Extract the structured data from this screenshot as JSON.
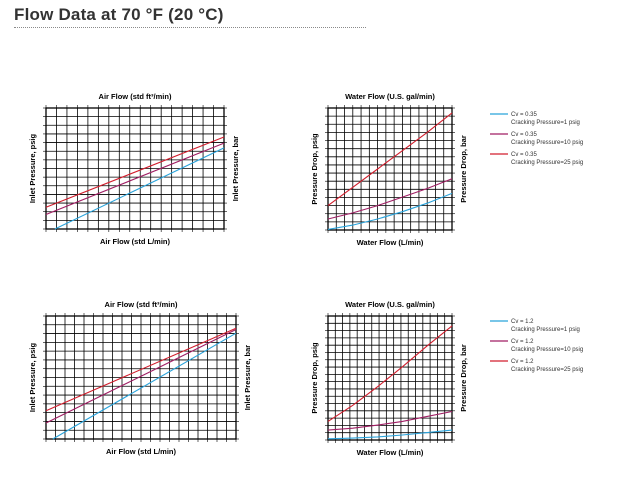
{
  "page": {
    "title": "Flow Data at 70 °F (20 °C)"
  },
  "colors": {
    "cyan": "#29a3db",
    "purple": "#a01e64",
    "red": "#d21e2d",
    "grid": "#000000"
  },
  "chart_data": [
    {
      "id": "air-cv035",
      "type": "line",
      "title": "Air Flow (std ft³/min)",
      "xlabel": "Air Flow (std L/min)",
      "ylabel": "Inlet Pressure, psig",
      "ylabel_right": "Inlet Pressure, bar",
      "xlim": [
        0,
        14
      ],
      "ylim": [
        0,
        10
      ],
      "grid": true,
      "legend": "none",
      "series": [
        {
          "name": "Cracking Pressure=1 psig",
          "color": "#29a3db",
          "x": [
            0.7,
            14
          ],
          "y": [
            0,
            6.7
          ]
        },
        {
          "name": "Cracking Pressure=10 psig",
          "color": "#a01e64",
          "x": [
            0,
            14
          ],
          "y": [
            1.2,
            7.1
          ]
        },
        {
          "name": "Cracking Pressure=25 psig",
          "color": "#d21e2d",
          "x": [
            0,
            14
          ],
          "y": [
            1.8,
            7.6
          ]
        }
      ]
    },
    {
      "id": "water-cv035",
      "type": "line",
      "title": "Water Flow (U.S. gal/min)",
      "xlabel": "Water Flow (L/min)",
      "ylabel": "Pressure Drop, psig",
      "ylabel_right": "Pressure Drop, bar",
      "xlim": [
        0,
        10
      ],
      "ylim": [
        0,
        10
      ],
      "grid": true,
      "legend": "right",
      "series": [
        {
          "name": "Cracking Pressure=1 psig",
          "color": "#29a3db",
          "x": [
            0,
            2,
            4,
            6,
            8,
            10
          ],
          "y": [
            0.05,
            0.4,
            0.9,
            1.5,
            2.2,
            3.0
          ]
        },
        {
          "name": "Cracking Pressure=10 psig",
          "color": "#a01e64",
          "x": [
            0,
            2,
            4,
            6,
            8,
            10
          ],
          "y": [
            0.9,
            1.4,
            2.0,
            2.7,
            3.4,
            4.2
          ]
        },
        {
          "name": "Cracking Pressure=25 psig",
          "color": "#d21e2d",
          "x": [
            0,
            2,
            4,
            6,
            8,
            10
          ],
          "y": [
            2.0,
            3.5,
            5.0,
            6.5,
            8.0,
            9.6
          ]
        }
      ]
    },
    {
      "id": "air-cv12",
      "type": "line",
      "title": "Air Flow (std ft³/min)",
      "xlabel": "Air Flow (std L/min)",
      "ylabel": "Inlet Pressure, psig",
      "ylabel_right": "Inlet Pressure, bar",
      "xlim": [
        0,
        14
      ],
      "ylim": [
        0,
        10
      ],
      "grid": true,
      "legend": "none",
      "series": [
        {
          "name": "Cracking Pressure=1 psig",
          "color": "#29a3db",
          "x": [
            0.5,
            14
          ],
          "y": [
            0,
            8.6
          ]
        },
        {
          "name": "Cracking Pressure=10 psig",
          "color": "#a01e64",
          "x": [
            0,
            14
          ],
          "y": [
            1.3,
            8.9
          ]
        },
        {
          "name": "Cracking Pressure=25 psig",
          "color": "#d21e2d",
          "x": [
            0,
            14
          ],
          "y": [
            2.3,
            9.0
          ]
        }
      ]
    },
    {
      "id": "water-cv12",
      "type": "line",
      "title": "Water Flow (U.S. gal/min)",
      "xlabel": "Water Flow (L/min)",
      "ylabel": "Pressure Drop, psig",
      "ylabel_right": "Pressure Drop, bar",
      "xlim": [
        0,
        10
      ],
      "ylim": [
        0,
        10
      ],
      "grid": true,
      "legend": "right",
      "series": [
        {
          "name": "Cracking Pressure=1 psig",
          "color": "#29a3db",
          "x": [
            0,
            2,
            4,
            6,
            8,
            10
          ],
          "y": [
            0.1,
            0.15,
            0.25,
            0.4,
            0.6,
            0.8
          ]
        },
        {
          "name": "Cracking Pressure=10 psig",
          "color": "#a01e64",
          "x": [
            0,
            2,
            4,
            6,
            8,
            10
          ],
          "y": [
            0.8,
            0.95,
            1.2,
            1.5,
            1.9,
            2.3
          ]
        },
        {
          "name": "Cracking Pressure=25 psig",
          "color": "#d21e2d",
          "x": [
            0,
            2,
            4,
            6,
            8,
            10
          ],
          "y": [
            1.5,
            2.8,
            4.3,
            5.9,
            7.6,
            9.2
          ]
        }
      ]
    }
  ],
  "legends": [
    {
      "id": "legend-cv035",
      "items": [
        {
          "cv": "Cv = 0.35",
          "cracking": "Cracking Pressure=1 psig",
          "color": "#29a3db"
        },
        {
          "cv": "Cv = 0.35",
          "cracking": "Cracking Pressure=10 psig",
          "color": "#a01e64"
        },
        {
          "cv": "Cv = 0.35",
          "cracking": "Cracking Pressure=25 psig",
          "color": "#d21e2d"
        }
      ]
    },
    {
      "id": "legend-cv12",
      "items": [
        {
          "cv": "Cv = 1.2",
          "cracking": "Cracking Pressure=1 psig",
          "color": "#29a3db"
        },
        {
          "cv": "Cv = 1.2",
          "cracking": "Cracking Pressure=10 psig",
          "color": "#a01e64"
        },
        {
          "cv": "Cv = 1.2",
          "cracking": "Cracking Pressure=25 psig",
          "color": "#d21e2d"
        }
      ]
    }
  ]
}
